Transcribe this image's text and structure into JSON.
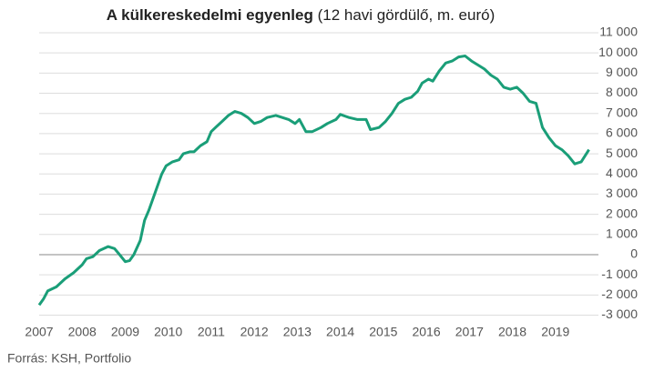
{
  "chart_data": {
    "type": "line",
    "title": "A külkereskedelmi egyenleg",
    "subtitle": "(12 havi gördülő, m. euró)",
    "source": "Forrás: KSH, Portfolio",
    "x": [
      2007.0,
      2007.1,
      2007.2,
      2007.4,
      2007.6,
      2007.8,
      2008.0,
      2008.1,
      2008.25,
      2008.4,
      2008.6,
      2008.75,
      2008.85,
      2009.0,
      2009.1,
      2009.2,
      2009.35,
      2009.45,
      2009.55,
      2009.7,
      2009.85,
      2009.95,
      2010.1,
      2010.25,
      2010.35,
      2010.5,
      2010.6,
      2010.75,
      2010.9,
      2011.0,
      2011.1,
      2011.25,
      2011.4,
      2011.55,
      2011.7,
      2011.85,
      2012.0,
      2012.15,
      2012.3,
      2012.5,
      2012.65,
      2012.8,
      2012.95,
      2013.05,
      2013.2,
      2013.35,
      2013.55,
      2013.7,
      2013.9,
      2014.0,
      2014.2,
      2014.4,
      2014.6,
      2014.7,
      2014.9,
      2015.05,
      2015.2,
      2015.35,
      2015.5,
      2015.65,
      2015.8,
      2015.9,
      2016.05,
      2016.15,
      2016.3,
      2016.45,
      2016.6,
      2016.75,
      2016.9,
      2017.05,
      2017.2,
      2017.35,
      2017.5,
      2017.65,
      2017.8,
      2017.95,
      2018.1,
      2018.25,
      2018.4,
      2018.55,
      2018.7,
      2018.85,
      2019.0,
      2019.15,
      2019.3,
      2019.45,
      2019.6,
      2019.78
    ],
    "series": [
      {
        "name": "Külkereskedelmi egyenleg",
        "color": "#1a9e78",
        "values": [
          -2500,
          -2200,
          -1800,
          -1600,
          -1200,
          -900,
          -500,
          -200,
          -100,
          200,
          400,
          300,
          50,
          -350,
          -300,
          0,
          700,
          1700,
          2200,
          3100,
          4000,
          4400,
          4600,
          4700,
          5000,
          5100,
          5100,
          5400,
          5600,
          6100,
          6300,
          6600,
          6900,
          7100,
          7000,
          6800,
          6500,
          6600,
          6800,
          6900,
          6800,
          6700,
          6500,
          6700,
          6100,
          6100,
          6300,
          6500,
          6700,
          6950,
          6800,
          6700,
          6700,
          6200,
          6300,
          6600,
          7000,
          7500,
          7700,
          7800,
          8100,
          8500,
          8700,
          8600,
          9100,
          9500,
          9600,
          9800,
          9850,
          9600,
          9400,
          9200,
          8900,
          8700,
          8300,
          8200,
          8300,
          8000,
          7600,
          7500,
          6300,
          5800,
          5400,
          5200,
          4900,
          4500,
          4600,
          5200
        ]
      }
    ],
    "xlim": [
      2007,
      2020
    ],
    "xticks": [
      2007,
      2008,
      2009,
      2010,
      2011,
      2012,
      2013,
      2014,
      2015,
      2016,
      2017,
      2018,
      2019
    ],
    "ylim": [
      -3000,
      11000
    ],
    "yticks": [
      {
        "value": -3000,
        "label": "-3 000"
      },
      {
        "value": -2000,
        "label": "-2 000"
      },
      {
        "value": -1000,
        "label": "-1 000"
      },
      0,
      {
        "value": 1000,
        "label": "1 000"
      },
      {
        "value": 2000,
        "label": "2 000"
      },
      {
        "value": 3000,
        "label": "3 000"
      },
      {
        "value": 4000,
        "label": "4 000"
      },
      {
        "value": 5000,
        "label": "5 000"
      },
      {
        "value": 6000,
        "label": "6 000"
      },
      {
        "value": 7000,
        "label": "7 000"
      },
      {
        "value": 8000,
        "label": "8 000"
      },
      {
        "value": 9000,
        "label": "9 000"
      },
      {
        "value": 10000,
        "label": "10 000"
      },
      {
        "value": 11000,
        "label": "11 000"
      }
    ],
    "grid": true
  }
}
